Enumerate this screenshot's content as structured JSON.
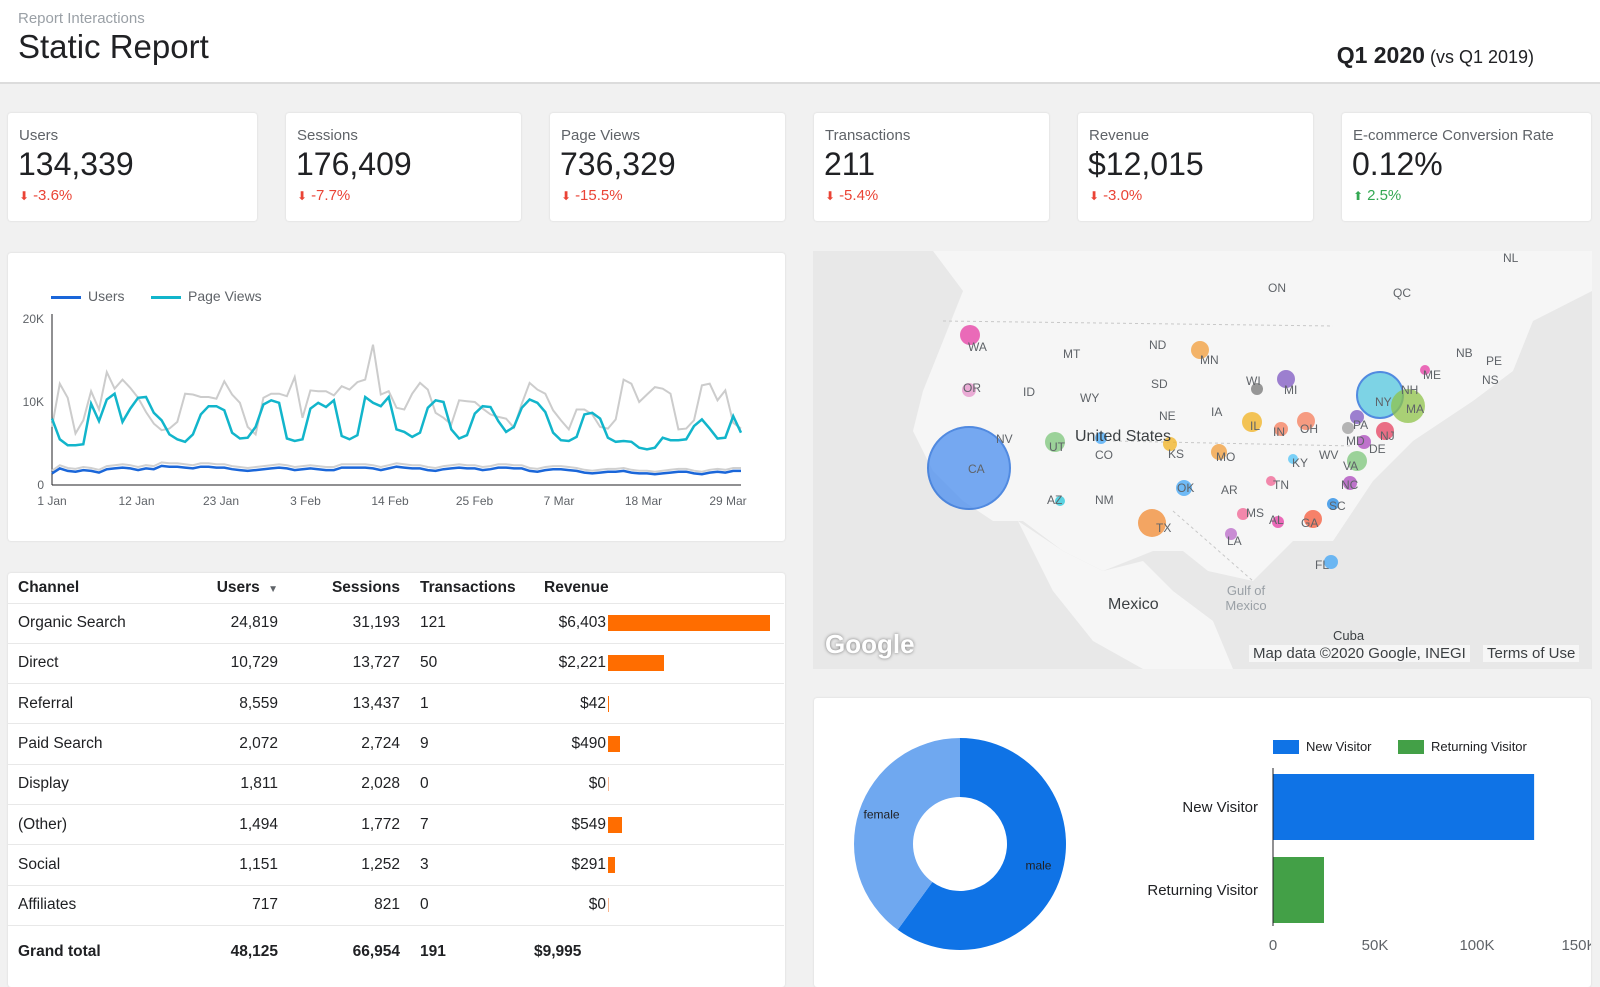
{
  "header": {
    "subtitle": "Report Interactions",
    "title": "Static Report",
    "period": "Q1 2020",
    "comparison": "(vs Q1 2019)"
  },
  "kpis": [
    {
      "label": "Users",
      "value": "134,339",
      "delta": "-3.6%",
      "direction": "down"
    },
    {
      "label": "Sessions",
      "value": "176,409",
      "delta": "-7.7%",
      "direction": "down"
    },
    {
      "label": "Page Views",
      "value": "736,329",
      "delta": "-15.5%",
      "direction": "down"
    },
    {
      "label": "Transactions",
      "value": "211",
      "delta": "-5.4%",
      "direction": "down"
    },
    {
      "label": "Revenue",
      "value": "$12,015",
      "delta": "-3.0%",
      "direction": "down"
    },
    {
      "label": "E-commerce Conversion Rate",
      "value": "0.12%",
      "delta": "2.5%",
      "direction": "up"
    }
  ],
  "icons": {
    "down": "arrow-down-icon",
    "up": "arrow-up-icon",
    "sort": "sort-desc-icon"
  },
  "colors": {
    "down": "#ea4335",
    "up": "#34a853",
    "users": "#1a66d9",
    "pageviews": "#12b5cb",
    "compare": "#cccccc",
    "revenue_bar": "#ff6d00",
    "new_visitor": "#0f73e6",
    "returning_visitor": "#43a047",
    "female": "#6fa8f0"
  },
  "table": {
    "headers": [
      "Channel",
      "Users",
      "Sessions",
      "Transactions",
      "Revenue"
    ],
    "rows": [
      {
        "channel": "Organic Search",
        "users": "24,819",
        "sessions": "31,193",
        "transactions": "121",
        "revenue": "$6,403",
        "revenue_value": 6403
      },
      {
        "channel": "Direct",
        "users": "10,729",
        "sessions": "13,727",
        "transactions": "50",
        "revenue": "$2,221",
        "revenue_value": 2221
      },
      {
        "channel": "Referral",
        "users": "8,559",
        "sessions": "13,437",
        "transactions": "1",
        "revenue": "$42",
        "revenue_value": 42
      },
      {
        "channel": "Paid Search",
        "users": "2,072",
        "sessions": "2,724",
        "transactions": "9",
        "revenue": "$490",
        "revenue_value": 490
      },
      {
        "channel": "Display",
        "users": "1,811",
        "sessions": "2,028",
        "transactions": "0",
        "revenue": "$0",
        "revenue_value": 0
      },
      {
        "channel": "(Other)",
        "users": "1,494",
        "sessions": "1,772",
        "transactions": "7",
        "revenue": "$549",
        "revenue_value": 549
      },
      {
        "channel": "Social",
        "users": "1,151",
        "sessions": "1,252",
        "transactions": "3",
        "revenue": "$291",
        "revenue_value": 291
      },
      {
        "channel": "Affiliates",
        "users": "717",
        "sessions": "821",
        "transactions": "0",
        "revenue": "$0",
        "revenue_value": 0
      }
    ],
    "total": {
      "label": "Grand total",
      "users": "48,125",
      "sessions": "66,954",
      "transactions": "191",
      "revenue": "$9,995"
    }
  },
  "map": {
    "country_labels": [
      "United States",
      "Mexico"
    ],
    "sea_label": "Gulf of Mexico",
    "cuba": "Cuba",
    "logo": "Google",
    "attribution": "Map data ©2020 Google, INEGI",
    "terms": "Terms of Use",
    "regions": [
      "ON",
      "QC",
      "NL",
      "NB",
      "PE",
      "NS",
      "MT",
      "ND",
      "MN",
      "SD",
      "WY",
      "ID",
      "NE",
      "IA",
      "CO",
      "KS",
      "MO",
      "OK",
      "AR",
      "NM",
      "TN",
      "KY",
      "WV",
      "NC",
      "SC",
      "MS",
      "AL",
      "GA",
      "LA",
      "FL",
      "WA",
      "OR",
      "NV",
      "UT",
      "AZ",
      "CA",
      "TX",
      "IL",
      "IN",
      "OH",
      "MI",
      "WI",
      "PA",
      "MD",
      "DE",
      "VA",
      "NJ",
      "NY",
      "MA",
      "NH",
      "ME"
    ]
  },
  "chart_data": [
    {
      "type": "line",
      "x_ticks": [
        "1 Jan",
        "12 Jan",
        "23 Jan",
        "3 Feb",
        "14 Feb",
        "25 Feb",
        "7 Mar",
        "18 Mar",
        "29 Mar"
      ],
      "y_ticks": [
        "0",
        "10K",
        "20K"
      ],
      "ylim": [
        0,
        20000
      ],
      "legend": "top-left",
      "series": [
        {
          "name": "Users",
          "values": [
            1400,
            2000,
            1700,
            1600,
            1800,
            1700,
            1500,
            1900,
            2000,
            2100,
            2000,
            1800,
            2000,
            1900,
            2300,
            2200,
            2200,
            2100,
            2000,
            2200,
            2200,
            2100,
            2100,
            1900,
            1800,
            1700,
            1800,
            1900,
            2000,
            2100,
            2000,
            1800,
            1900,
            2000,
            1900,
            1800,
            1800,
            2100,
            2100,
            2100,
            2100,
            2000,
            1800,
            2000,
            2200,
            2100,
            2000,
            2000,
            1800,
            1700,
            1900,
            2000,
            2100,
            2000,
            2000,
            1800,
            1900,
            2100,
            2100,
            2000,
            2000,
            1700,
            1600,
            1800,
            1900,
            1900,
            1800,
            1700,
            1500,
            1400,
            1500,
            1600,
            1600,
            1700,
            1500,
            1400,
            1400,
            1300,
            1400,
            1500,
            1600,
            1600,
            1400,
            1300,
            1500,
            1600,
            1500,
            1700,
            1700
          ]
        },
        {
          "name": "Page Views",
          "values": [
            8000,
            5500,
            4800,
            4800,
            4900,
            9800,
            7700,
            10300,
            11000,
            7600,
            9200,
            10500,
            10600,
            8700,
            7800,
            6100,
            5500,
            5200,
            6100,
            8500,
            9500,
            9500,
            9000,
            6300,
            5600,
            5700,
            7000,
            9700,
            10200,
            9900,
            5600,
            5300,
            5500,
            9200,
            9900,
            9400,
            10200,
            5900,
            5500,
            6000,
            10600,
            9900,
            9500,
            10600,
            6700,
            6400,
            5800,
            6300,
            9300,
            10200,
            10000,
            6700,
            5600,
            6000,
            8600,
            9500,
            9400,
            7700,
            6400,
            7000,
            9300,
            10300,
            9900,
            8800,
            6300,
            5400,
            5300,
            5800,
            8500,
            8700,
            8000,
            5700,
            5200,
            5300,
            5200,
            4500,
            4300,
            4500,
            5700,
            5400,
            5400,
            5500,
            7100,
            7900,
            6800,
            5600,
            5700,
            8300,
            6300
          ]
        },
        {
          "name": "",
          "values": [
            7000,
            12200,
            10500,
            6200,
            7800,
            11300,
            9100,
            13600,
            11600,
            12700,
            11700,
            10500,
            8800,
            7400,
            6600,
            6800,
            7600,
            11000,
            10900,
            10600,
            10600,
            10400,
            12500,
            10900,
            9900,
            7000,
            6100,
            10500,
            11000,
            11000,
            10700,
            13000,
            8100,
            11400,
            11300,
            11300,
            10800,
            11900,
            11500,
            12400,
            12700,
            16900,
            10900,
            11300,
            9300,
            9100,
            11000,
            12300,
            11500,
            8700,
            8100,
            7300,
            10200,
            10100,
            10000,
            9200,
            8500,
            8200,
            8000,
            6900,
            9800,
            12300,
            11500,
            11000,
            9000,
            7800,
            6700,
            9100,
            9100,
            8500,
            7000,
            6800,
            7900,
            12700,
            12200,
            10000,
            10900,
            11800,
            11600,
            11000,
            6700,
            6800,
            7800,
            12000,
            12200,
            10200,
            11400,
            7500,
            6800
          ]
        }
      ]
    },
    {
      "type": "pie",
      "donut": true,
      "slices": [
        {
          "label": "male",
          "value": 60
        },
        {
          "label": "female",
          "value": 40
        }
      ]
    },
    {
      "type": "bar",
      "orientation": "horizontal",
      "categories": [
        "New Visitor",
        "Returning Visitor"
      ],
      "values": [
        128000,
        25000
      ],
      "legend_entries": [
        "New Visitor",
        "Returning Visitor"
      ],
      "x_ticks": [
        "0",
        "50K",
        "100K",
        "150K"
      ],
      "xlim": [
        0,
        150000
      ]
    }
  ]
}
